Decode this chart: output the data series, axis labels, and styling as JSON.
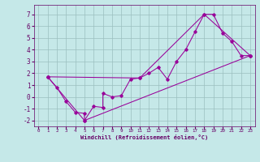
{
  "xlabel": "Windchill (Refroidissement éolien,°C)",
  "xlim": [
    -0.5,
    23.5
  ],
  "ylim": [
    -2.5,
    7.8
  ],
  "yticks": [
    -2,
    -1,
    0,
    1,
    2,
    3,
    4,
    5,
    6,
    7
  ],
  "xticks": [
    0,
    1,
    2,
    3,
    4,
    5,
    6,
    7,
    8,
    9,
    10,
    11,
    12,
    13,
    14,
    15,
    16,
    17,
    18,
    19,
    20,
    21,
    22,
    23
  ],
  "bg_color": "#c5e8e8",
  "line_color": "#990099",
  "grid_color": "#9bbfbf",
  "line1_x": [
    1,
    2,
    3,
    4,
    5,
    5,
    6,
    7,
    7,
    8,
    9,
    10,
    11,
    12,
    13,
    14,
    15,
    16,
    17,
    18,
    19,
    20,
    21,
    22,
    23
  ],
  "line1_y": [
    1.7,
    0.8,
    -0.4,
    -1.3,
    -1.4,
    -2.0,
    -0.8,
    -0.9,
    0.3,
    0.0,
    0.1,
    1.5,
    1.6,
    2.0,
    2.5,
    1.5,
    3.0,
    4.0,
    5.5,
    7.0,
    7.0,
    5.4,
    4.7,
    3.5,
    3.5
  ],
  "line2_x": [
    1,
    11,
    18,
    23
  ],
  "line2_y": [
    1.7,
    1.6,
    7.0,
    3.5
  ],
  "line3_x": [
    1,
    5,
    23
  ],
  "line3_y": [
    1.7,
    -2.0,
    3.5
  ]
}
